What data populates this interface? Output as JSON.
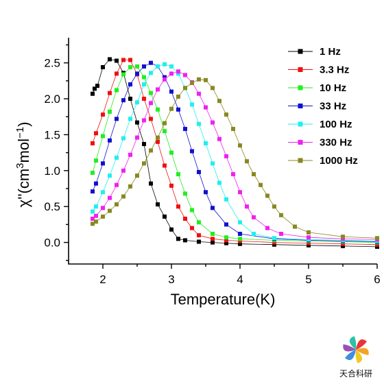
{
  "chart_data": {
    "type": "line",
    "xlabel": "Temperature(K)",
    "ylabel_parts": [
      "χ''(cm",
      "3",
      "mol",
      "−1",
      ")"
    ],
    "xlim": [
      1.5,
      6.0
    ],
    "ylim": [
      -0.3,
      2.85
    ],
    "xticks": [
      2,
      3,
      4,
      5,
      6
    ],
    "yticks": [
      0.0,
      0.5,
      1.0,
      1.5,
      2.0,
      2.5
    ],
    "ytick_labels": [
      "0.0",
      "0.5",
      "1.0",
      "1.5",
      "2.0",
      "2.5"
    ],
    "legend_position": "top-right",
    "series": [
      {
        "name": "1 Hz",
        "color": "#000000",
        "x": [
          1.85,
          1.88,
          1.92,
          2.0,
          2.1,
          2.2,
          2.3,
          2.4,
          2.5,
          2.6,
          2.7,
          2.8,
          2.9,
          3.0,
          3.1,
          3.2,
          3.4,
          3.6,
          3.8,
          4.0,
          4.5,
          5.0,
          5.5,
          6.0
        ],
        "y": [
          2.07,
          2.14,
          2.18,
          2.44,
          2.55,
          2.53,
          2.36,
          2.0,
          1.67,
          1.37,
          0.82,
          0.53,
          0.36,
          0.18,
          0.05,
          0.03,
          0.01,
          0.0,
          -0.01,
          -0.02,
          -0.03,
          -0.04,
          -0.05,
          -0.06
        ]
      },
      {
        "name": "3.3 Hz",
        "color": "#ee1111",
        "x": [
          1.85,
          1.9,
          2.0,
          2.1,
          2.2,
          2.3,
          2.4,
          2.5,
          2.6,
          2.7,
          2.8,
          2.9,
          3.0,
          3.1,
          3.2,
          3.3,
          3.4,
          3.6,
          3.8,
          4.0,
          4.5,
          5.0,
          5.5,
          6.0
        ],
        "y": [
          1.38,
          1.52,
          1.78,
          2.08,
          2.35,
          2.54,
          2.54,
          2.34,
          2.0,
          1.72,
          1.4,
          1.07,
          0.79,
          0.5,
          0.33,
          0.2,
          0.1,
          0.05,
          0.03,
          0.02,
          0.0,
          -0.01,
          -0.02,
          -0.03
        ]
      },
      {
        "name": "10 Hz",
        "color": "#22ee22",
        "x": [
          1.85,
          1.9,
          2.0,
          2.1,
          2.2,
          2.3,
          2.4,
          2.5,
          2.6,
          2.7,
          2.8,
          2.9,
          3.0,
          3.1,
          3.2,
          3.3,
          3.4,
          3.6,
          3.8,
          4.0,
          4.5,
          5.0,
          5.5,
          6.0
        ],
        "y": [
          0.97,
          1.14,
          1.48,
          1.82,
          2.12,
          2.34,
          2.44,
          2.45,
          2.3,
          2.08,
          1.85,
          1.55,
          1.25,
          0.95,
          0.68,
          0.45,
          0.28,
          0.12,
          0.07,
          0.05,
          0.03,
          0.02,
          0.01,
          0.0
        ]
      },
      {
        "name": "33 Hz",
        "color": "#1111cc",
        "x": [
          1.85,
          1.9,
          2.0,
          2.1,
          2.2,
          2.3,
          2.4,
          2.5,
          2.6,
          2.7,
          2.8,
          2.9,
          3.0,
          3.1,
          3.2,
          3.3,
          3.4,
          3.5,
          3.6,
          3.8,
          4.0,
          4.5,
          5.0,
          5.5,
          6.0
        ],
        "y": [
          0.71,
          0.82,
          1.1,
          1.42,
          1.72,
          1.98,
          2.2,
          2.35,
          2.45,
          2.5,
          2.45,
          2.3,
          2.1,
          1.85,
          1.58,
          1.27,
          0.98,
          0.7,
          0.48,
          0.25,
          0.12,
          0.05,
          0.03,
          0.02,
          0.01
        ]
      },
      {
        "name": "100 Hz",
        "color": "#22eeee",
        "x": [
          1.85,
          1.9,
          2.0,
          2.1,
          2.2,
          2.3,
          2.4,
          2.5,
          2.6,
          2.7,
          2.8,
          2.9,
          3.0,
          3.1,
          3.2,
          3.3,
          3.4,
          3.5,
          3.6,
          3.7,
          3.8,
          4.0,
          4.2,
          4.5,
          5.0,
          5.5,
          6.0
        ],
        "y": [
          0.43,
          0.5,
          0.7,
          0.93,
          1.18,
          1.45,
          1.72,
          1.95,
          2.2,
          2.36,
          2.45,
          2.48,
          2.45,
          2.35,
          2.15,
          1.92,
          1.65,
          1.38,
          1.1,
          0.83,
          0.6,
          0.28,
          0.12,
          0.06,
          0.04,
          0.03,
          0.02
        ]
      },
      {
        "name": "330 Hz",
        "color": "#ee22ee",
        "x": [
          1.85,
          1.9,
          2.0,
          2.1,
          2.2,
          2.3,
          2.4,
          2.5,
          2.6,
          2.7,
          2.8,
          2.9,
          3.0,
          3.1,
          3.2,
          3.3,
          3.4,
          3.5,
          3.6,
          3.7,
          3.8,
          3.9,
          4.0,
          4.1,
          4.2,
          4.4,
          4.6,
          5.0,
          5.5,
          6.0
        ],
        "y": [
          0.33,
          0.37,
          0.48,
          0.62,
          0.8,
          1.0,
          1.22,
          1.46,
          1.7,
          1.94,
          2.13,
          2.27,
          2.35,
          2.38,
          2.33,
          2.23,
          2.07,
          1.88,
          1.67,
          1.44,
          1.2,
          0.95,
          0.7,
          0.5,
          0.35,
          0.2,
          0.12,
          0.07,
          0.05,
          0.04
        ]
      },
      {
        "name": "1000 Hz",
        "color": "#888822",
        "x": [
          1.85,
          1.9,
          2.0,
          2.1,
          2.2,
          2.3,
          2.4,
          2.5,
          2.6,
          2.7,
          2.8,
          2.9,
          3.0,
          3.1,
          3.2,
          3.3,
          3.4,
          3.5,
          3.6,
          3.7,
          3.8,
          3.9,
          4.0,
          4.1,
          4.2,
          4.3,
          4.4,
          4.5,
          4.6,
          4.8,
          5.0,
          5.5,
          6.0
        ],
        "y": [
          0.26,
          0.29,
          0.36,
          0.44,
          0.53,
          0.64,
          0.78,
          0.93,
          1.1,
          1.28,
          1.46,
          1.66,
          1.86,
          2.03,
          2.15,
          2.22,
          2.27,
          2.26,
          2.15,
          1.97,
          1.78,
          1.58,
          1.35,
          1.13,
          0.95,
          0.8,
          0.65,
          0.5,
          0.38,
          0.22,
          0.14,
          0.08,
          0.06
        ]
      }
    ]
  },
  "watermark": {
    "text": "天合科研",
    "colors": [
      "#e8232a",
      "#f39c12",
      "#f1c40f",
      "#2e86de",
      "#8e44ad",
      "#1abc9c"
    ]
  }
}
